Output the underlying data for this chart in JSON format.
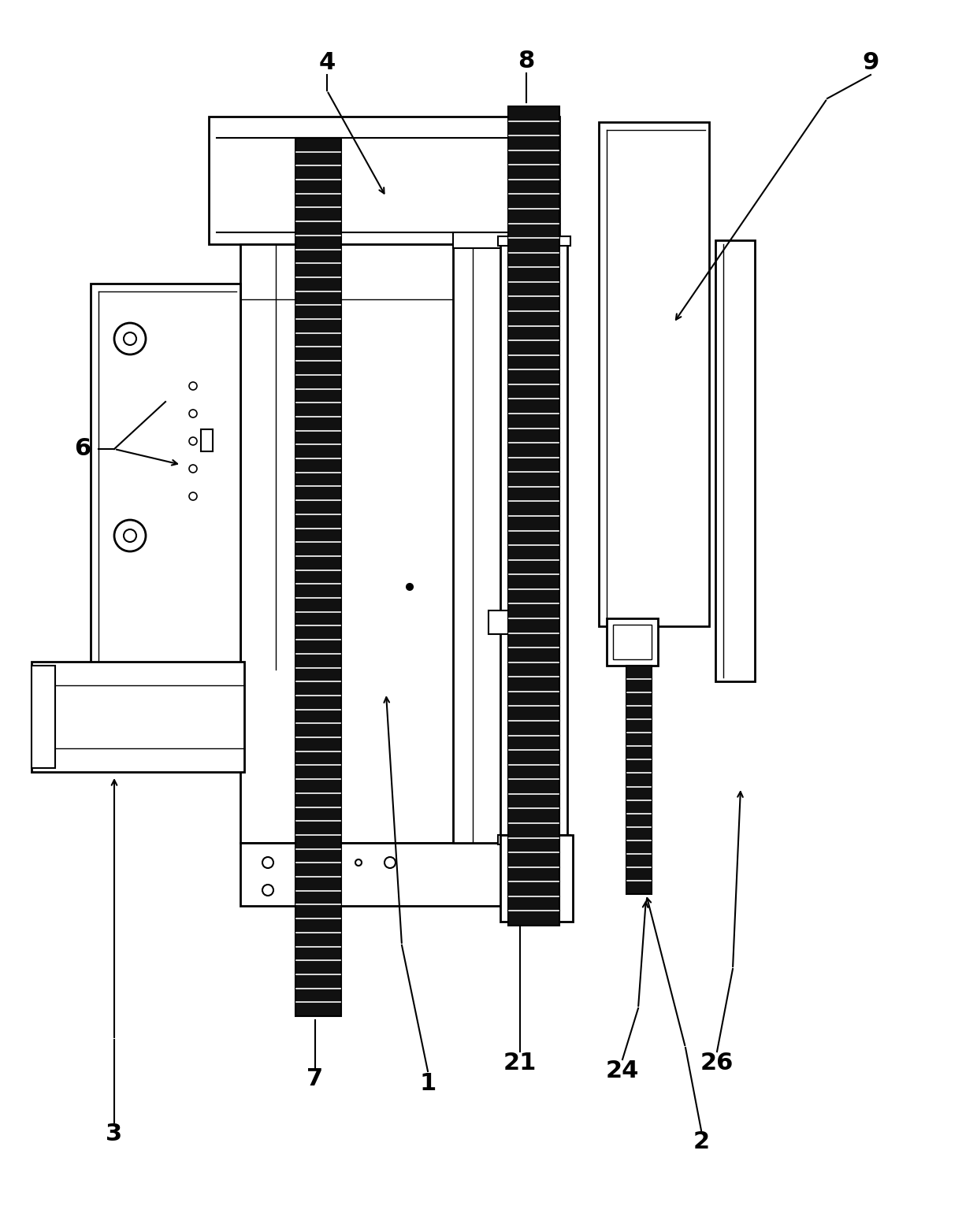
{
  "bg_color": "#ffffff",
  "dark_fill": "#111111",
  "label_fontsize": 22,
  "figsize": [
    12.4,
    15.64
  ],
  "dpi": 100
}
